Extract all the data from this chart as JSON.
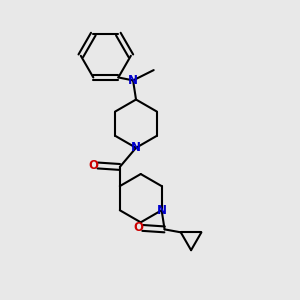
{
  "background_color": "#e8e8e8",
  "bond_color": "#000000",
  "N_color": "#0000cc",
  "O_color": "#cc0000",
  "bond_width": 1.5,
  "figsize": [
    3.0,
    3.0
  ],
  "dpi": 100,
  "xlim": [
    0,
    10
  ],
  "ylim": [
    0,
    10
  ]
}
